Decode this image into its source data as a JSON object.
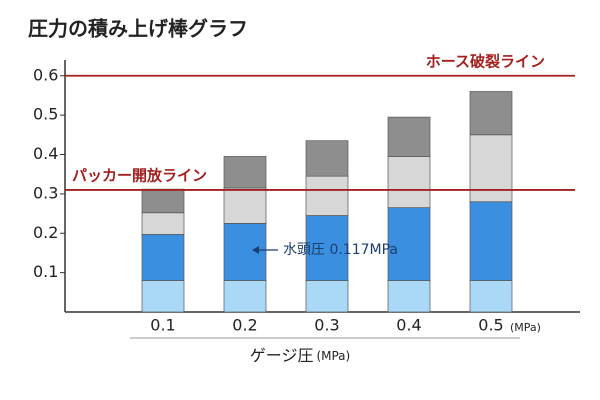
{
  "chart_data": {
    "type": "bar",
    "stacked": true,
    "title": "圧力の積み上げ棒グラフ",
    "categories": [
      "0.1",
      "0.2",
      "0.3",
      "0.4",
      "0.5"
    ],
    "x_unit": "(MPa)",
    "xlabel": "ゲージ圧",
    "xlabel_unit": "(MPa)",
    "series": [
      {
        "color": "#a9d9f6",
        "values": [
          0.08,
          0.08,
          0.08,
          0.08,
          0.08
        ]
      },
      {
        "color": "#3b8fe0",
        "values": [
          0.117,
          0.145,
          0.165,
          0.185,
          0.2
        ]
      },
      {
        "color": "#d7d7d7",
        "values": [
          0.055,
          0.09,
          0.1,
          0.13,
          0.17
        ]
      },
      {
        "color": "#8e8e8e",
        "values": [
          0.06,
          0.08,
          0.09,
          0.1,
          0.11
        ]
      }
    ],
    "ylim": [
      0,
      0.64
    ],
    "yticks": [
      0.1,
      0.2,
      0.3,
      0.4,
      0.5,
      0.6
    ],
    "ref_lines": [
      {
        "value": 0.6,
        "label": "ホース破裂ライン",
        "color": "#a3201f"
      },
      {
        "value": 0.31,
        "label": "パッカー開放ライン",
        "color": "#a3201f"
      }
    ],
    "annotation": {
      "text": "水頭圧 0.117MPa",
      "color": "#1d3f6e"
    }
  }
}
